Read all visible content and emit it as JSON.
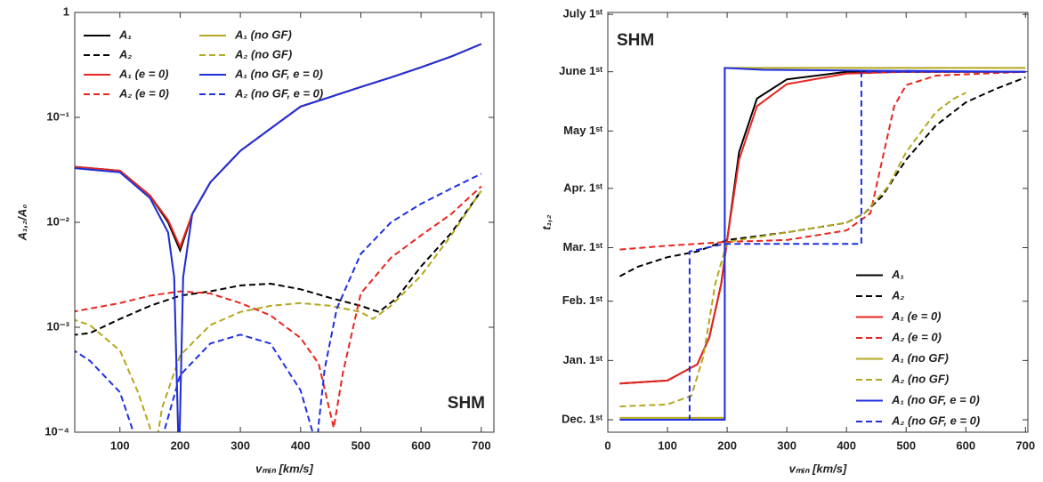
{
  "chart_data": [
    {
      "type": "line",
      "log_y": true,
      "xlabel": "vₘᵢₙ [km/s]",
      "ylabel": "A₁,₂/A₀",
      "xlim": [
        25,
        721
      ],
      "ylim": [
        0.0001,
        1
      ],
      "xticks": [
        100,
        200,
        300,
        400,
        500,
        600,
        700
      ],
      "yticks": [
        {
          "value": 0.0001,
          "label": "10⁻⁴"
        },
        {
          "value": 0.001,
          "label": "10⁻³"
        },
        {
          "value": 0.01,
          "label": "10⁻²"
        },
        {
          "value": 0.1,
          "label": "10⁻¹"
        },
        1
      ],
      "annotation": "SHM",
      "annotation_corner": "lower right",
      "legend_corner": "upper left",
      "legend_columns": 2,
      "series": [
        {
          "name": "A₁",
          "color": "#000000",
          "dash": false,
          "x": [
            20,
            100,
            150,
            180,
            200,
            220,
            250,
            300,
            350,
            400,
            450,
            500,
            550,
            600,
            650,
            700
          ],
          "values": [
            0.034,
            0.031,
            0.018,
            0.01,
            0.0054,
            0.012,
            0.024,
            0.048,
            0.078,
            0.127,
            0.157,
            0.195,
            0.24,
            0.3,
            0.38,
            0.5
          ]
        },
        {
          "name": "A₂",
          "color": "#000000",
          "dash": true,
          "x": [
            20,
            50,
            100,
            150,
            200,
            250,
            300,
            350,
            400,
            450,
            500,
            530,
            560,
            600,
            650,
            700
          ],
          "values": [
            0.00084,
            0.00088,
            0.0012,
            0.0016,
            0.002,
            0.0022,
            0.0025,
            0.0026,
            0.0023,
            0.0019,
            0.0016,
            0.0014,
            0.0019,
            0.0038,
            0.0079,
            0.02
          ]
        },
        {
          "name": "A₁ (e = 0)",
          "color": "#e8251f",
          "dash": false,
          "x": [
            20,
            100,
            150,
            180,
            200,
            220,
            250,
            300,
            350,
            400,
            450,
            500,
            550,
            600,
            650,
            700
          ],
          "values": [
            0.034,
            0.031,
            0.018,
            0.0105,
            0.0058,
            0.012,
            0.024,
            0.048,
            0.078,
            0.127,
            0.157,
            0.195,
            0.24,
            0.3,
            0.38,
            0.5
          ]
        },
        {
          "name": "A₂ (e = 0)",
          "color": "#e8251f",
          "dash": true,
          "x": [
            20,
            100,
            150,
            200,
            250,
            300,
            350,
            400,
            430,
            455,
            470,
            500,
            550,
            600,
            650,
            700
          ],
          "values": [
            0.0014,
            0.0017,
            0.002,
            0.0022,
            0.0021,
            0.0017,
            0.0013,
            0.00079,
            0.00045,
            0.00011,
            0.00036,
            0.0021,
            0.0046,
            0.0075,
            0.012,
            0.022
          ]
        },
        {
          "name": "A₁ (no GF)",
          "color": "#b3a81e",
          "dash": false,
          "x": [
            20,
            100,
            150,
            180,
            190,
            198,
            205,
            220,
            250,
            300,
            350,
            400,
            450,
            500,
            550,
            600,
            650,
            700
          ],
          "values": [
            0.033,
            0.03,
            0.017,
            0.008,
            0.003,
            5e-05,
            0.003,
            0.012,
            0.024,
            0.048,
            0.078,
            0.127,
            0.157,
            0.195,
            0.24,
            0.3,
            0.38,
            0.5
          ]
        },
        {
          "name": "A₂ (no GF)",
          "color": "#b3a81e",
          "dash": true,
          "x": [
            20,
            50,
            100,
            130,
            150,
            155,
            170,
            200,
            250,
            300,
            350,
            400,
            450,
            500,
            520,
            550,
            600,
            650,
            700
          ],
          "values": [
            0.0012,
            0.00105,
            0.0006,
            0.00024,
            0.00011,
            5e-05,
            0.00017,
            0.00054,
            0.00105,
            0.0014,
            0.0016,
            0.0017,
            0.0016,
            0.0014,
            0.0012,
            0.0016,
            0.0031,
            0.0075,
            0.02
          ]
        },
        {
          "name": "A₁ (no GF, e = 0)",
          "color": "#1f2fe0",
          "dash": false,
          "x": [
            20,
            100,
            150,
            180,
            190,
            198,
            205,
            220,
            250,
            300,
            350,
            400,
            450,
            500,
            550,
            600,
            650,
            700
          ],
          "values": [
            0.033,
            0.03,
            0.017,
            0.008,
            0.003,
            5e-05,
            0.003,
            0.012,
            0.024,
            0.048,
            0.078,
            0.127,
            0.157,
            0.195,
            0.24,
            0.3,
            0.38,
            0.5
          ]
        },
        {
          "name": "A₂ (no GF, e = 0)",
          "color": "#1f2fe0",
          "dash": true,
          "x": [
            20,
            50,
            100,
            120,
            125,
            160,
            175,
            200,
            250,
            300,
            350,
            400,
            420,
            425,
            430,
            440,
            460,
            500,
            550,
            600,
            650,
            700
          ],
          "values": [
            0.00062,
            0.00048,
            0.00024,
            0.00011,
            5e-05,
            5e-05,
            0.00011,
            0.00035,
            0.0007,
            0.00085,
            0.0007,
            0.00025,
            0.0001,
            5e-05,
            0.00012,
            0.0004,
            0.0015,
            0.005,
            0.01,
            0.015,
            0.021,
            0.029
          ]
        }
      ]
    },
    {
      "type": "line",
      "log_y": false,
      "xlabel": "vₘᵢₙ [km/s]",
      "ylabel": "t₁,₂",
      "xlim": [
        0,
        704
      ],
      "ylim": [
        -6.5,
        213
      ],
      "xticks": [
        0,
        100,
        200,
        300,
        400,
        500,
        600,
        700
      ],
      "yticks": [
        {
          "value": 0,
          "label": "Dec. 1ˢᵗ"
        },
        {
          "value": 31,
          "label": "Jan. 1ˢᵗ"
        },
        {
          "value": 62,
          "label": "Feb. 1ˢᵗ"
        },
        {
          "value": 90,
          "label": "Mar. 1ˢᵗ"
        },
        {
          "value": 121,
          "label": "Apr. 1ˢᵗ"
        },
        {
          "value": 151,
          "label": "May 1ˢᵗ"
        },
        {
          "value": 182,
          "label": "June 1ˢᵗ"
        },
        {
          "value": 212,
          "label": "July 1ˢᵗ"
        }
      ],
      "annotation": "SHM",
      "annotation_corner": "upper left",
      "legend_corner": "lower right",
      "legend_columns": 1,
      "series": [
        {
          "name": "A₁",
          "color": "#000000",
          "dash": false,
          "x": [
            20,
            100,
            150,
            170,
            190,
            200,
            220,
            250,
            300,
            400,
            500,
            700
          ],
          "values": [
            19,
            20.5,
            29,
            43,
            71,
            94,
            140,
            168,
            178,
            182,
            182,
            182
          ]
        },
        {
          "name": "A₂",
          "color": "#000000",
          "dash": true,
          "x": [
            20,
            50,
            100,
            150,
            200,
            300,
            400,
            430,
            460,
            500,
            550,
            600,
            650,
            700
          ],
          "values": [
            75,
            80,
            85,
            88,
            94,
            98,
            103,
            108,
            117,
            136,
            154,
            166,
            173,
            179
          ]
        },
        {
          "name": "A₁ (e = 0)",
          "color": "#e8251f",
          "dash": false,
          "x": [
            20,
            100,
            150,
            170,
            190,
            200,
            220,
            250,
            300,
            400,
            500,
            700
          ],
          "values": [
            19,
            20.5,
            29,
            43,
            71,
            94,
            136,
            164,
            175.5,
            181,
            182,
            182
          ]
        },
        {
          "name": "A₂ (e = 0)",
          "color": "#e8251f",
          "dash": true,
          "x": [
            20,
            100,
            200,
            300,
            400,
            440,
            460,
            480,
            500,
            550,
            700
          ],
          "values": [
            89,
            91,
            93,
            94,
            99,
            108,
            136,
            164,
            175,
            180,
            182
          ]
        },
        {
          "name": "A₁ (no GF)",
          "color": "#b3a81e",
          "dash": false,
          "x": [
            20,
            196,
            196,
            700
          ],
          "values": [
            1,
            1,
            184,
            184
          ]
        },
        {
          "name": "A₂ (no GF)",
          "color": "#b3a81e",
          "dash": true,
          "x": [
            20,
            100,
            140,
            160,
            180,
            200,
            300,
            400,
            430,
            470,
            500,
            550,
            580,
            600
          ],
          "values": [
            7,
            8,
            12.5,
            33,
            71,
            93,
            98,
            103,
            108,
            122,
            140,
            161,
            168,
            171
          ]
        },
        {
          "name": "A₁ (no GF, e = 0)",
          "color": "#1f2fe0",
          "dash": false,
          "x": [
            20,
            196,
            196,
            260,
            700
          ],
          "values": [
            0,
            0,
            184,
            183,
            182
          ]
        },
        {
          "name": "A₂ (no GF, e = 0)",
          "color": "#1f2fe0",
          "dash": true,
          "x": [
            20,
            137,
            137,
            196,
            425,
            425,
            700
          ],
          "values": [
            0,
            0,
            88,
            92,
            92,
            182,
            182
          ]
        }
      ]
    }
  ]
}
